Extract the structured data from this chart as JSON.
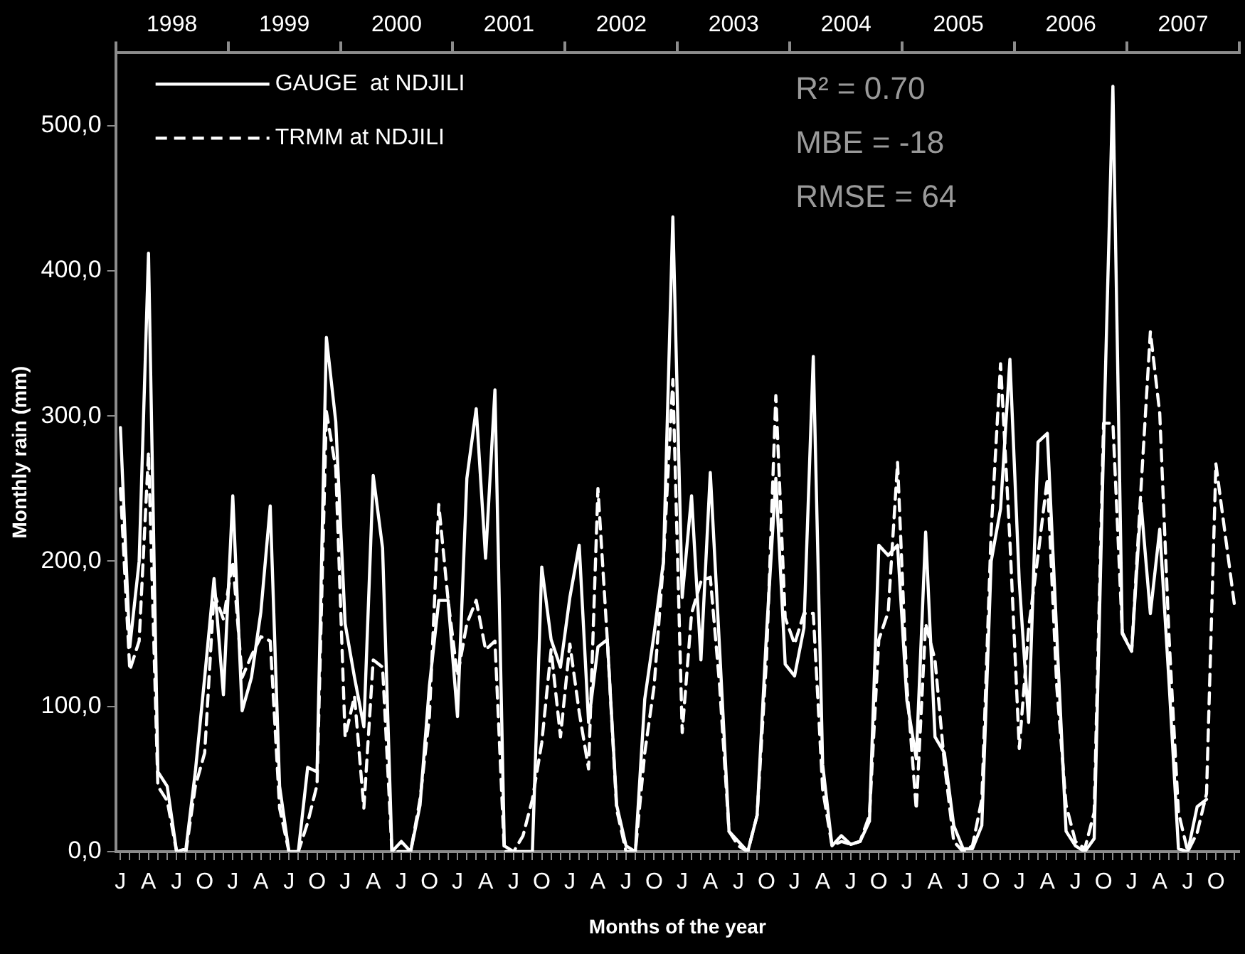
{
  "chart_data": {
    "type": "line",
    "xlabel": "Months of the year",
    "ylabel": "Monthly rain (mm)",
    "categories": [
      "J",
      null,
      null,
      "A",
      null,
      null,
      "J",
      null,
      null,
      "O",
      null,
      null,
      "J",
      null,
      null,
      "A",
      null,
      null,
      "J",
      null,
      null,
      "O",
      null,
      null,
      "J",
      null,
      null,
      "A",
      null,
      null,
      "J",
      null,
      null,
      "O",
      null,
      null,
      "J",
      null,
      null,
      "A",
      null,
      null,
      "J",
      null,
      null,
      "O",
      null,
      null,
      "J",
      null,
      null,
      "A",
      null,
      null,
      "J",
      null,
      null,
      "O",
      null,
      null,
      "J",
      null,
      null,
      "A",
      null,
      null,
      "J",
      null,
      null,
      "O",
      null,
      null,
      "J",
      null,
      null,
      "A",
      null,
      null,
      "J",
      null,
      null,
      "O",
      null,
      null,
      "J",
      null,
      null,
      "A",
      null,
      null,
      "J",
      null,
      null,
      "O",
      null,
      null,
      "J",
      null,
      null,
      "A",
      null,
      null,
      "J",
      null,
      null,
      "O",
      null,
      null,
      "J",
      null,
      null,
      "A",
      null,
      null,
      "J",
      null,
      null,
      "O",
      null,
      null
    ],
    "series": [
      {
        "name": "GAUGE  at NDJILI",
        "color": "#ffffff",
        "line_style": "solid",
        "values": [
          292,
          141,
          200,
          412,
          55,
          45,
          0,
          2,
          55,
          120,
          188,
          108,
          245,
          97,
          120,
          165,
          238,
          45,
          0,
          0,
          58,
          55,
          354,
          296,
          157,
          120,
          86,
          259,
          209,
          0,
          7,
          0,
          32,
          114,
          173,
          173,
          93,
          257,
          305,
          202,
          318,
          4,
          0,
          0,
          0,
          196,
          146,
          127,
          175,
          211,
          89,
          141,
          146,
          32,
          4,
          0,
          105,
          150,
          200,
          437,
          175,
          245,
          132,
          261,
          139,
          14,
          7,
          0,
          25,
          150,
          257,
          129,
          121,
          154,
          341,
          60,
          4,
          11,
          5,
          7,
          21,
          211,
          204,
          211,
          104,
          64,
          220,
          79,
          68,
          18,
          2,
          2,
          18,
          200,
          236,
          339,
          186,
          89,
          282,
          288,
          150,
          14,
          4,
          0,
          9,
          280,
          527,
          150,
          138,
          240,
          164,
          222,
          116,
          2,
          0,
          31,
          36,
          null,
          null,
          null
        ]
      },
      {
        "name": "TRMM at NDJILI",
        "color": "#ffffff",
        "line_style": "dashed",
        "values": [
          250,
          125,
          145,
          275,
          45,
          35,
          0,
          0,
          45,
          68,
          178,
          160,
          200,
          120,
          135,
          148,
          145,
          30,
          0,
          0,
          20,
          46,
          303,
          264,
          79,
          107,
          30,
          132,
          127,
          0,
          0,
          0,
          36,
          93,
          239,
          173,
          121,
          157,
          173,
          139,
          145,
          0,
          0,
          11,
          36,
          75,
          139,
          79,
          143,
          96,
          57,
          250,
          146,
          29,
          0,
          0,
          68,
          114,
          200,
          325,
          82,
          164,
          186,
          189,
          114,
          14,
          4,
          0,
          25,
          132,
          314,
          161,
          143,
          164,
          164,
          43,
          4,
          7,
          5,
          7,
          25,
          146,
          165,
          268,
          114,
          29,
          157,
          132,
          61,
          7,
          0,
          4,
          36,
          221,
          336,
          214,
          71,
          154,
          204,
          257,
          114,
          32,
          7,
          2,
          27,
          295,
          295,
          151,
          138,
          250,
          358,
          302,
          147,
          27,
          0,
          13,
          40,
          267,
          218,
          169
        ]
      }
    ],
    "ylim": [
      0,
      550
    ],
    "yticks": [
      {
        "value": 0,
        "label": "0,0"
      },
      {
        "value": 100,
        "label": "100,0"
      },
      {
        "value": 200,
        "label": "200,0"
      },
      {
        "value": 300,
        "label": "300,0"
      },
      {
        "value": 400,
        "label": "400,0"
      },
      {
        "value": 500,
        "label": "500,0"
      }
    ],
    "x2lim": [
      1998,
      2008
    ],
    "x2ticks": [
      {
        "value": 1998,
        "label": null
      },
      {
        "value": 1998.5,
        "label": "1998"
      },
      {
        "value": 1999,
        "label": null
      },
      {
        "value": 1999.5,
        "label": "1999"
      },
      {
        "value": 2000,
        "label": null
      },
      {
        "value": 2000.5,
        "label": "2000"
      },
      {
        "value": 2001,
        "label": null
      },
      {
        "value": 2001.5,
        "label": "2001"
      },
      {
        "value": 2002,
        "label": null
      },
      {
        "value": 2002.5,
        "label": "2002"
      },
      {
        "value": 2003,
        "label": null
      },
      {
        "value": 2003.5,
        "label": "2003"
      },
      {
        "value": 2004,
        "label": null
      },
      {
        "value": 2004.5,
        "label": "2004"
      },
      {
        "value": 2005,
        "label": null
      },
      {
        "value": 2005.5,
        "label": "2005"
      },
      {
        "value": 2006,
        "label": null
      },
      {
        "value": 2006.5,
        "label": "2006"
      },
      {
        "value": 2007,
        "label": null
      },
      {
        "value": 2007.5,
        "label": "2007"
      },
      {
        "value": 2008,
        "label": null
      }
    ],
    "legend": "top left",
    "marker": "none",
    "annotations": [
      "R² = 0.70",
      "MBE = -18",
      "RMSE = 64"
    ]
  }
}
